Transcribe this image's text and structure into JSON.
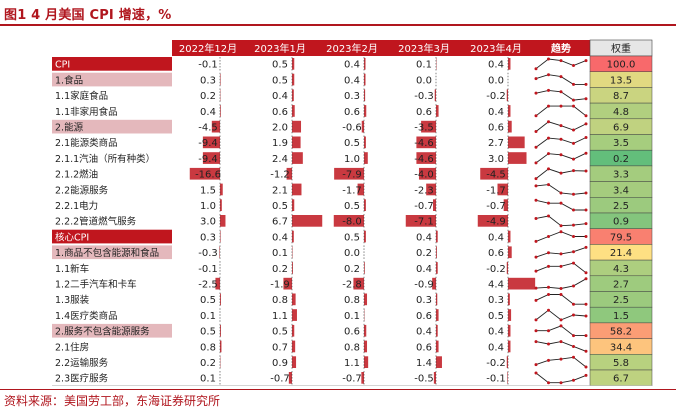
{
  "figure_title": "图1  4 月美国 CPI 增速，%",
  "source_note": "资料来源：美国劳工部，东海证券研究所",
  "headers": {
    "columns": [
      "2022年12月",
      "2023年1月",
      "2023年2月",
      "2023年3月",
      "2023年4月"
    ],
    "trend": "趋势",
    "weight": "权重"
  },
  "colors": {
    "brand_red": "#b0161e",
    "header_red": "#c0161e",
    "pink_row": "#e4b8bc",
    "bar_red": "#c0161e",
    "weight_green": "#63be7b",
    "weight_yellow": "#ffe083",
    "weight_red": "#f8696b"
  },
  "chart_data": {
    "type": "table",
    "title": "4 月美国 CPI 增速，%",
    "columns": [
      "2022年12月",
      "2023年1月",
      "2023年2月",
      "2023年3月",
      "2023年4月"
    ],
    "rows": [
      {
        "label": "CPI",
        "values": [
          -0.1,
          0.5,
          0.4,
          0.1,
          0.4
        ],
        "weight": 100.0,
        "style": "header"
      },
      {
        "label": "1.食品",
        "values": [
          0.3,
          0.5,
          0.4,
          0.0,
          0.0
        ],
        "weight": 13.5,
        "style": "pink"
      },
      {
        "label": "1.1家庭食品",
        "values": [
          0.2,
          0.4,
          0.3,
          -0.3,
          -0.2
        ],
        "weight": 8.7,
        "style": "plain"
      },
      {
        "label": "1.1非家用食品",
        "values": [
          0.4,
          0.6,
          0.6,
          0.6,
          0.4
        ],
        "weight": 4.8,
        "style": "plain"
      },
      {
        "label": "2.能源",
        "values": [
          -4.5,
          2.0,
          -0.6,
          -3.5,
          0.6
        ],
        "weight": 6.9,
        "style": "pink"
      },
      {
        "label": "2.1能源类商品",
        "values": [
          -9.4,
          1.9,
          0.5,
          -4.6,
          2.7
        ],
        "weight": 3.5,
        "style": "plain"
      },
      {
        "label": "2.1.1汽油（所有种类）",
        "values": [
          -9.4,
          2.4,
          1.0,
          -4.6,
          3.0
        ],
        "weight": 0.2,
        "style": "plain"
      },
      {
        "label": "2.1.2燃油",
        "values": [
          -16.6,
          -1.2,
          -7.9,
          -4.0,
          -4.5
        ],
        "weight": 3.3,
        "style": "plain"
      },
      {
        "label": "2.2能源服务",
        "values": [
          1.5,
          2.1,
          -1.7,
          -2.3,
          -1.7
        ],
        "weight": 3.4,
        "style": "plain"
      },
      {
        "label": "2.2.1电力",
        "values": [
          1.0,
          0.5,
          0.5,
          -0.7,
          -0.7
        ],
        "weight": 2.5,
        "style": "plain"
      },
      {
        "label": "2.2.2管道燃气服务",
        "values": [
          3.0,
          6.7,
          -8.0,
          -7.1,
          -4.9
        ],
        "weight": 0.9,
        "style": "plain"
      },
      {
        "label": "核心CPI",
        "values": [
          0.3,
          0.4,
          0.5,
          0.4,
          0.4
        ],
        "weight": 79.5,
        "style": "header"
      },
      {
        "label": "1.商品不包含能源和食品",
        "values": [
          -0.3,
          0.1,
          0.0,
          0.2,
          0.6
        ],
        "weight": 21.4,
        "style": "pink"
      },
      {
        "label": "1.1新车",
        "values": [
          -0.1,
          0.2,
          0.2,
          0.4,
          -0.2
        ],
        "weight": 4.3,
        "style": "plain"
      },
      {
        "label": "1.2二手汽车和卡车",
        "values": [
          -2.5,
          -1.9,
          -2.8,
          -0.9,
          4.4
        ],
        "weight": 2.7,
        "style": "plain"
      },
      {
        "label": "1.3服装",
        "values": [
          0.5,
          0.8,
          0.8,
          0.3,
          0.3
        ],
        "weight": 2.5,
        "style": "plain"
      },
      {
        "label": "1.4医疗类商品",
        "values": [
          0.1,
          1.1,
          0.1,
          0.6,
          0.5
        ],
        "weight": 1.5,
        "style": "plain"
      },
      {
        "label": "2.服务不包含能源服务",
        "values": [
          0.5,
          0.5,
          0.6,
          0.4,
          0.4
        ],
        "weight": 58.2,
        "style": "pink"
      },
      {
        "label": "2.1住房",
        "values": [
          0.8,
          0.7,
          0.8,
          0.6,
          0.4
        ],
        "weight": 34.4,
        "style": "plain"
      },
      {
        "label": "2.2运输服务",
        "values": [
          0.2,
          0.9,
          1.1,
          1.4,
          -0.2
        ],
        "weight": 5.8,
        "style": "plain"
      },
      {
        "label": "2.3医疗服务",
        "values": [
          0.1,
          -0.7,
          -0.7,
          -0.5,
          -0.1
        ],
        "weight": 6.7,
        "style": "plain"
      }
    ]
  }
}
